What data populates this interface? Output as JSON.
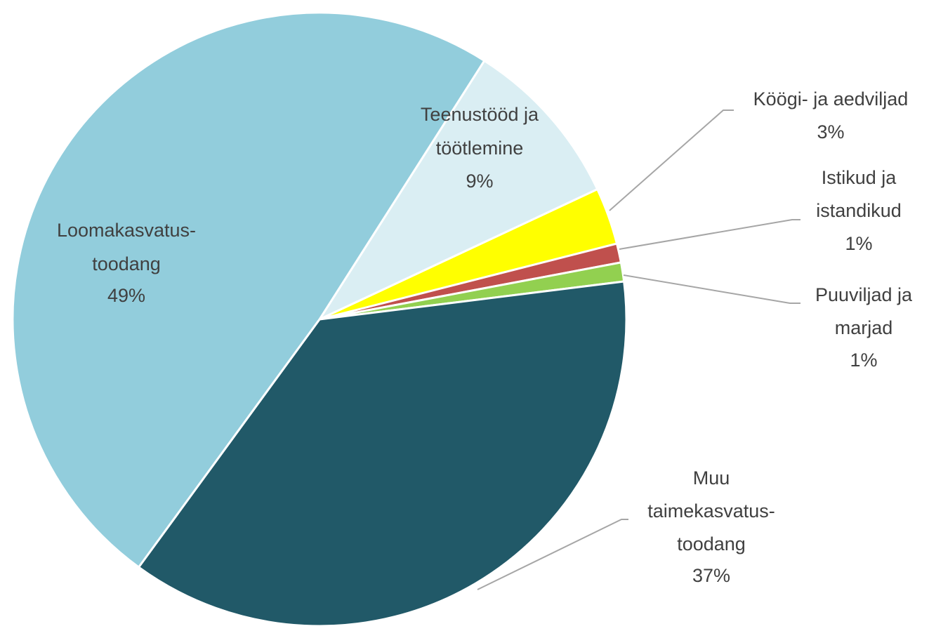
{
  "chart_data": {
    "type": "pie",
    "categories": [
      [
        "Teenustööd ja",
        "töötlemine"
      ],
      [
        "Köögi- ja aedviljad"
      ],
      [
        "Istikud ja",
        "istandikud"
      ],
      [
        "Puuviljad ja",
        "marjad"
      ],
      [
        "Muu",
        "taimekasvatus-",
        "toodang"
      ],
      [
        "Loomakasvatus-",
        "toodang"
      ]
    ],
    "values": [
      9,
      3,
      1,
      1,
      37,
      49
    ],
    "value_labels": [
      "9%",
      "3%",
      "1%",
      "1%",
      "37%",
      "49%"
    ],
    "colors": [
      "#daeef3",
      "#ffff00",
      "#c0504d",
      "#92d050",
      "#215968",
      "#92cddc"
    ]
  }
}
